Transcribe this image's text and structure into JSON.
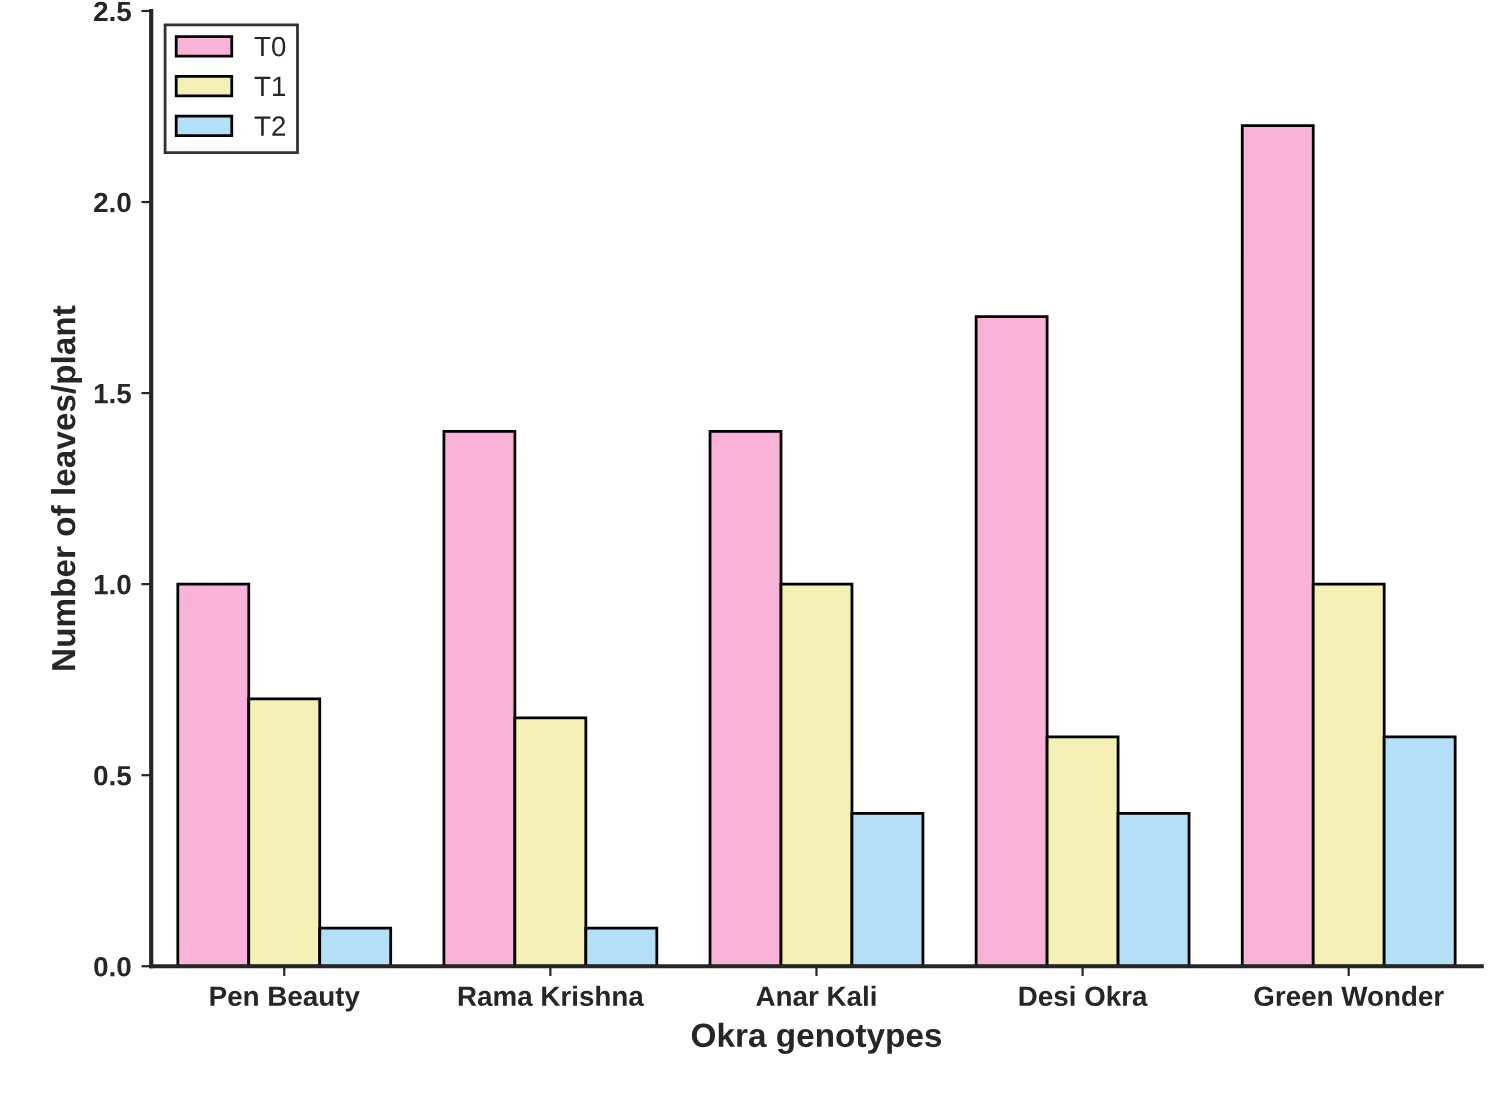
{
  "chart_data": {
    "type": "bar",
    "xlabel": "Okra genotypes",
    "ylabel": "Number of leaves/plant",
    "categories": [
      "Pen Beauty",
      "Rama Krishna",
      "Anar Kali",
      "Desi Okra",
      "Green Wonder"
    ],
    "series": [
      {
        "name": "T0",
        "color": "#f9b3d9",
        "values": [
          1.0,
          1.4,
          1.4,
          1.7,
          2.2
        ]
      },
      {
        "name": "T1",
        "color": "#f5f0b5",
        "values": [
          0.7,
          0.65,
          1.0,
          0.6,
          1.0
        ]
      },
      {
        "name": "T2",
        "color": "#b3e0f7",
        "values": [
          0.1,
          0.1,
          0.4,
          0.4,
          0.6
        ]
      }
    ],
    "ylim": [
      0,
      2.5
    ],
    "yticks": [
      {
        "value": 0,
        "label": "0.0"
      },
      {
        "value": 0.5,
        "label": "0.5"
      },
      {
        "value": 1.0,
        "label": "1.0"
      },
      {
        "value": 1.5,
        "label": "1.5"
      },
      {
        "value": 2.0,
        "label": "2.0"
      },
      {
        "value": 2.5,
        "label": "2.5"
      }
    ],
    "legend": "top left",
    "grid": false
  }
}
